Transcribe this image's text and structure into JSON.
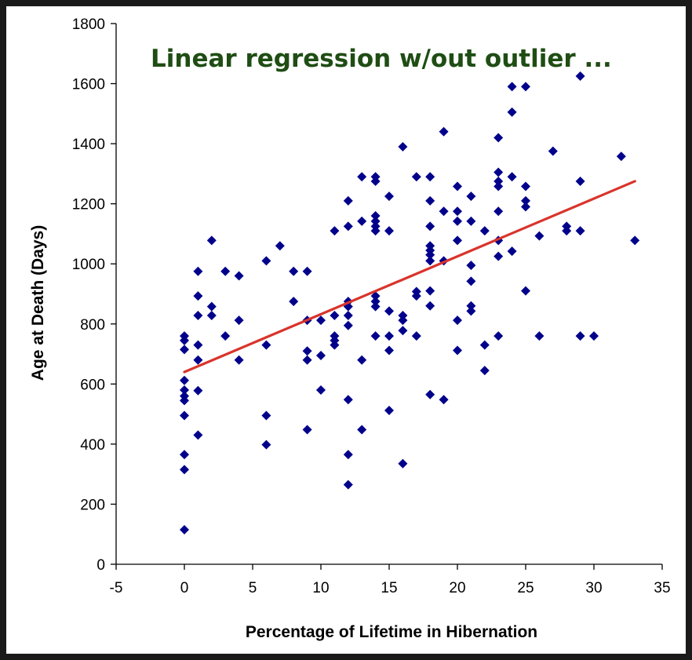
{
  "chart_data": {
    "type": "scatter",
    "title": "Linear regression w/out outlier ...",
    "xlabel": "Percentage of Lifetime in Hibernation",
    "ylabel": "Age at Death (Days)",
    "xlim": [
      -5,
      35
    ],
    "ylim": [
      0,
      1800
    ],
    "xticks": [
      -5,
      0,
      5,
      10,
      15,
      20,
      25,
      30,
      35
    ],
    "yticks": [
      0,
      200,
      400,
      600,
      800,
      1000,
      1200,
      1400,
      1600,
      1800
    ],
    "grid": false,
    "legend": "none",
    "colors": {
      "points": "#00008b",
      "fit_line": "#d9342b",
      "title": "#1f4d14"
    },
    "fit_line": {
      "x": [
        0,
        33
      ],
      "y": [
        640,
        1275
      ]
    },
    "points": [
      [
        0,
        115
      ],
      [
        0,
        315
      ],
      [
        0,
        365
      ],
      [
        0,
        495
      ],
      [
        0,
        545
      ],
      [
        0,
        560
      ],
      [
        0,
        580
      ],
      [
        0,
        612
      ],
      [
        0,
        715
      ],
      [
        0,
        745
      ],
      [
        0,
        760
      ],
      [
        1,
        430
      ],
      [
        1,
        578
      ],
      [
        1,
        680
      ],
      [
        1,
        730
      ],
      [
        1,
        828
      ],
      [
        1,
        893
      ],
      [
        1,
        975
      ],
      [
        2,
        828
      ],
      [
        2,
        858
      ],
      [
        2,
        1078
      ],
      [
        3,
        760
      ],
      [
        3,
        975
      ],
      [
        4,
        680
      ],
      [
        4,
        812
      ],
      [
        4,
        960
      ],
      [
        6,
        398
      ],
      [
        6,
        495
      ],
      [
        6,
        730
      ],
      [
        6,
        1010
      ],
      [
        7,
        1060
      ],
      [
        8,
        875
      ],
      [
        8,
        975
      ],
      [
        9,
        448
      ],
      [
        9,
        680
      ],
      [
        9,
        710
      ],
      [
        9,
        812
      ],
      [
        9,
        975
      ],
      [
        10,
        580
      ],
      [
        10,
        695
      ],
      [
        10,
        812
      ],
      [
        11,
        730
      ],
      [
        11,
        745
      ],
      [
        11,
        760
      ],
      [
        11,
        828
      ],
      [
        11,
        1110
      ],
      [
        12,
        265
      ],
      [
        12,
        365
      ],
      [
        12,
        548
      ],
      [
        12,
        795
      ],
      [
        12,
        828
      ],
      [
        12,
        858
      ],
      [
        12,
        875
      ],
      [
        12,
        1125
      ],
      [
        12,
        1210
      ],
      [
        13,
        448
      ],
      [
        13,
        680
      ],
      [
        13,
        1142
      ],
      [
        13,
        1290
      ],
      [
        14,
        760
      ],
      [
        14,
        858
      ],
      [
        14,
        875
      ],
      [
        14,
        893
      ],
      [
        14,
        1110
      ],
      [
        14,
        1125
      ],
      [
        14,
        1142
      ],
      [
        14,
        1160
      ],
      [
        14,
        1275
      ],
      [
        14,
        1290
      ],
      [
        15,
        512
      ],
      [
        15,
        712
      ],
      [
        15,
        760
      ],
      [
        15,
        843
      ],
      [
        15,
        1110
      ],
      [
        15,
        1225
      ],
      [
        16,
        335
      ],
      [
        16,
        778
      ],
      [
        16,
        812
      ],
      [
        16,
        828
      ],
      [
        16,
        1390
      ],
      [
        17,
        760
      ],
      [
        17,
        893
      ],
      [
        17,
        908
      ],
      [
        17,
        1290
      ],
      [
        18,
        565
      ],
      [
        18,
        860
      ],
      [
        18,
        910
      ],
      [
        18,
        1010
      ],
      [
        18,
        1030
      ],
      [
        18,
        1045
      ],
      [
        18,
        1060
      ],
      [
        18,
        1125
      ],
      [
        18,
        1210
      ],
      [
        18,
        1290
      ],
      [
        19,
        548
      ],
      [
        19,
        1010
      ],
      [
        19,
        1175
      ],
      [
        19,
        1440
      ],
      [
        20,
        712
      ],
      [
        20,
        812
      ],
      [
        20,
        1078
      ],
      [
        20,
        1142
      ],
      [
        20,
        1175
      ],
      [
        20,
        1258
      ],
      [
        21,
        843
      ],
      [
        21,
        860
      ],
      [
        21,
        942
      ],
      [
        21,
        995
      ],
      [
        21,
        1142
      ],
      [
        21,
        1225
      ],
      [
        22,
        645
      ],
      [
        22,
        730
      ],
      [
        22,
        1110
      ],
      [
        23,
        760
      ],
      [
        23,
        1025
      ],
      [
        23,
        1078
      ],
      [
        23,
        1175
      ],
      [
        23,
        1258
      ],
      [
        23,
        1275
      ],
      [
        23,
        1305
      ],
      [
        23,
        1420
      ],
      [
        24,
        1042
      ],
      [
        24,
        1290
      ],
      [
        24,
        1505
      ],
      [
        24,
        1590
      ],
      [
        25,
        910
      ],
      [
        25,
        1190
      ],
      [
        25,
        1210
      ],
      [
        25,
        1258
      ],
      [
        25,
        1590
      ],
      [
        26,
        760
      ],
      [
        26,
        1093
      ],
      [
        27,
        1375
      ],
      [
        28,
        1110
      ],
      [
        28,
        1125
      ],
      [
        29,
        760
      ],
      [
        29,
        1110
      ],
      [
        29,
        1275
      ],
      [
        29,
        1625
      ],
      [
        30,
        760
      ],
      [
        32,
        1358
      ],
      [
        33,
        1078
      ]
    ]
  }
}
